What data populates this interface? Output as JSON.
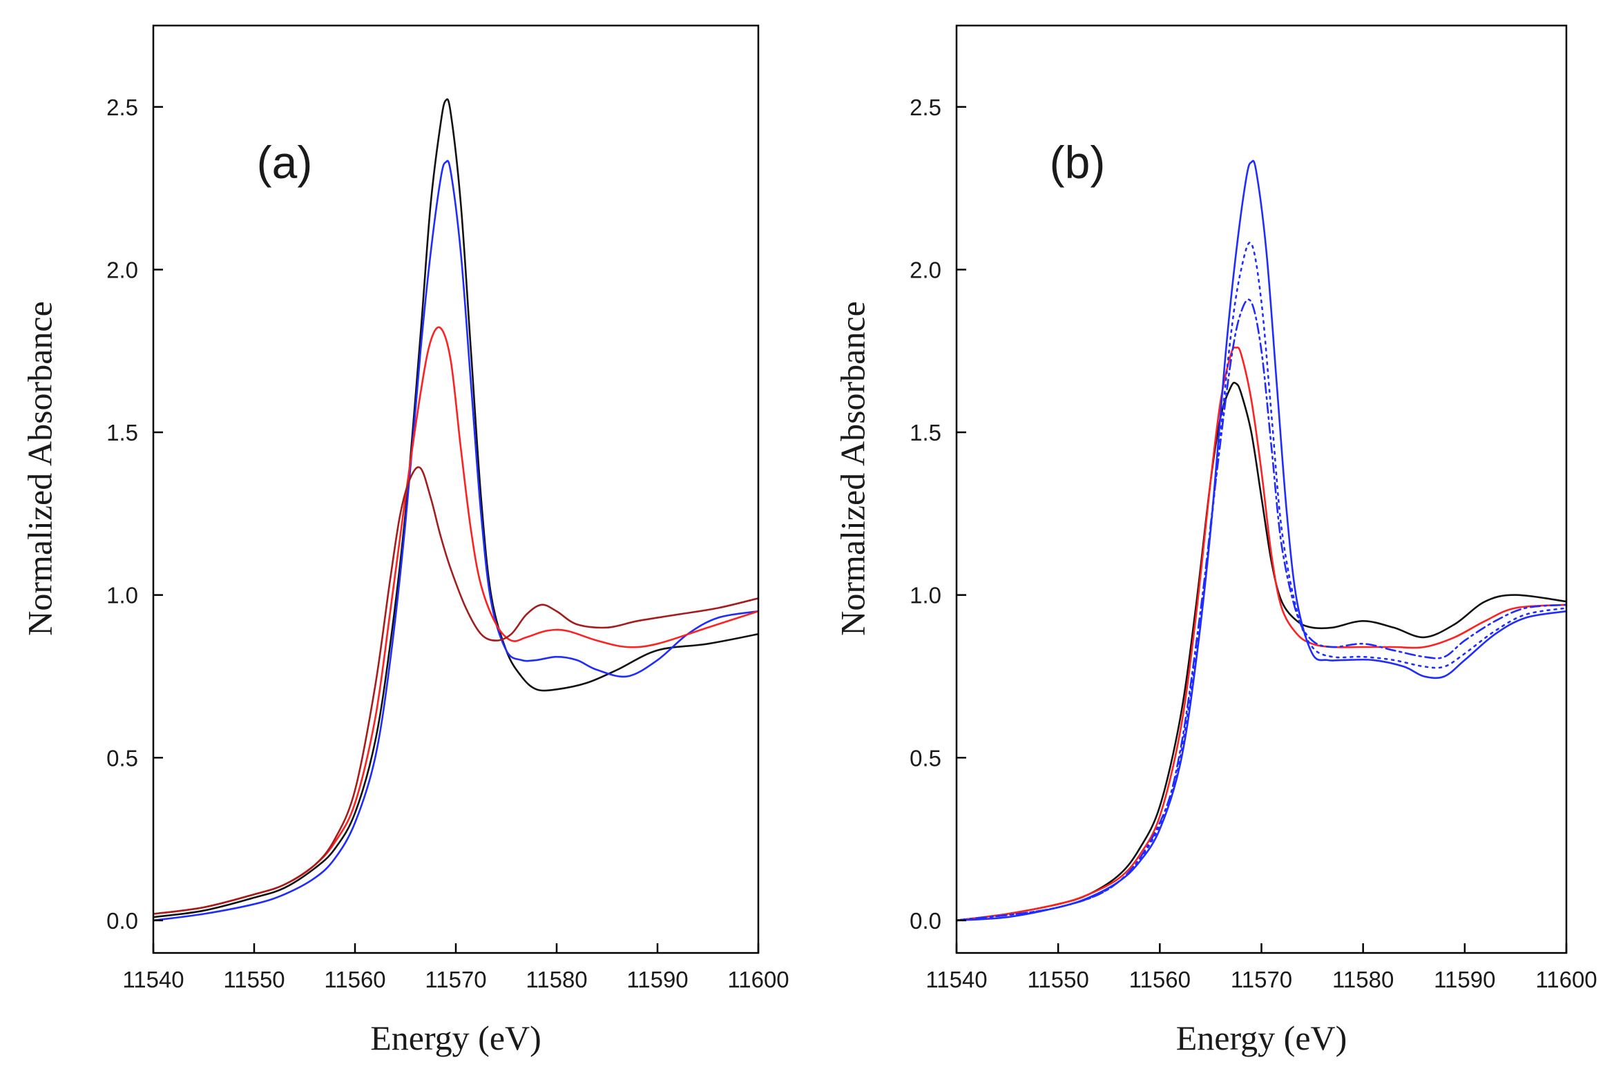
{
  "colors": {
    "black": "#111111",
    "blue": "#1f2cff",
    "red": "#ff2020",
    "darkred": "#a51c1c"
  },
  "chart_data": [
    {
      "type": "line",
      "panel_label": "(a)",
      "xlabel": "Energy (eV)",
      "ylabel": "Normalized Absorbance",
      "xlim": [
        11540,
        11600
      ],
      "ylim": [
        -0.1,
        2.75
      ],
      "xticks": [
        11540,
        11550,
        11560,
        11570,
        11580,
        11590,
        11600
      ],
      "yticks": [
        0.0,
        0.5,
        1.0,
        1.5,
        2.0,
        2.5
      ],
      "xtick_labels": [
        "11540",
        "11550",
        "11560",
        "11570",
        "11580",
        "11590",
        "11600"
      ],
      "ytick_labels": [
        "0.0",
        "0.5",
        "1.0",
        "1.5",
        "2.0",
        "2.5"
      ],
      "series": [
        {
          "color": "black",
          "style": "solid",
          "x": [
            11540,
            11545,
            11550,
            11553,
            11556,
            11558,
            11560,
            11562,
            11563.5,
            11565,
            11566.5,
            11567.5,
            11568.5,
            11569,
            11569.5,
            11570.5,
            11571.5,
            11572.5,
            11573.5,
            11575,
            11576.5,
            11578,
            11580,
            11583,
            11586,
            11590,
            11595,
            11600
          ],
          "y": [
            0.01,
            0.03,
            0.07,
            0.1,
            0.16,
            0.22,
            0.33,
            0.55,
            0.85,
            1.25,
            1.8,
            2.2,
            2.45,
            2.52,
            2.48,
            2.2,
            1.75,
            1.3,
            1.0,
            0.83,
            0.75,
            0.71,
            0.71,
            0.73,
            0.77,
            0.83,
            0.85,
            0.88
          ]
        },
        {
          "color": "blue",
          "style": "solid",
          "x": [
            11540,
            11545,
            11550,
            11553,
            11556,
            11558,
            11560,
            11562,
            11563.5,
            11565,
            11566.5,
            11567.5,
            11568.5,
            11569,
            11569.5,
            11570.5,
            11571.5,
            11572.5,
            11573.5,
            11575,
            11576.5,
            11578,
            11580,
            11582,
            11584,
            11587,
            11590,
            11593,
            11596,
            11600
          ],
          "y": [
            0.0,
            0.02,
            0.05,
            0.08,
            0.13,
            0.19,
            0.3,
            0.5,
            0.8,
            1.22,
            1.75,
            2.05,
            2.28,
            2.33,
            2.3,
            2.05,
            1.65,
            1.25,
            0.98,
            0.83,
            0.8,
            0.8,
            0.81,
            0.8,
            0.77,
            0.75,
            0.8,
            0.88,
            0.93,
            0.95
          ]
        },
        {
          "color": "red",
          "style": "solid",
          "x": [
            11540,
            11545,
            11550,
            11553,
            11556,
            11558,
            11560,
            11562,
            11563.5,
            11565,
            11566.5,
            11567.5,
            11568.5,
            11569.5,
            11570.5,
            11571.5,
            11572.5,
            11574,
            11575.5,
            11577,
            11579,
            11581,
            11584,
            11587,
            11590,
            11595,
            11600
          ],
          "y": [
            0.02,
            0.04,
            0.08,
            0.11,
            0.17,
            0.24,
            0.36,
            0.62,
            0.95,
            1.3,
            1.62,
            1.78,
            1.82,
            1.72,
            1.45,
            1.2,
            1.03,
            0.91,
            0.86,
            0.87,
            0.89,
            0.89,
            0.86,
            0.84,
            0.85,
            0.9,
            0.95
          ]
        },
        {
          "color": "darkred",
          "style": "solid",
          "x": [
            11540,
            11545,
            11550,
            11553,
            11556,
            11558,
            11560,
            11562,
            11563.5,
            11564.5,
            11565.5,
            11566.5,
            11567.5,
            11568.5,
            11569.5,
            11571,
            11572.5,
            11574,
            11575.5,
            11577,
            11578.5,
            11580,
            11582,
            11585,
            11588,
            11592,
            11596,
            11600
          ],
          "y": [
            0.02,
            0.04,
            0.08,
            0.11,
            0.17,
            0.25,
            0.4,
            0.72,
            1.05,
            1.25,
            1.36,
            1.39,
            1.3,
            1.18,
            1.08,
            0.96,
            0.88,
            0.86,
            0.88,
            0.94,
            0.97,
            0.95,
            0.91,
            0.9,
            0.92,
            0.94,
            0.96,
            0.99
          ]
        }
      ]
    },
    {
      "type": "line",
      "panel_label": "(b)",
      "xlabel": "Energy (eV)",
      "ylabel": "Normalized Absorbance",
      "xlim": [
        11540,
        11600
      ],
      "ylim": [
        -0.1,
        2.75
      ],
      "xticks": [
        11540,
        11550,
        11560,
        11570,
        11580,
        11590,
        11600
      ],
      "yticks": [
        0.0,
        0.5,
        1.0,
        1.5,
        2.0,
        2.5
      ],
      "xtick_labels": [
        "11540",
        "11550",
        "11560",
        "11570",
        "11580",
        "11590",
        "11600"
      ],
      "ytick_labels": [
        "0.0",
        "0.5",
        "1.0",
        "1.5",
        "2.0",
        "2.5"
      ],
      "series": [
        {
          "color": "black",
          "style": "solid",
          "x": [
            11540,
            11545,
            11550,
            11553,
            11556,
            11558,
            11560,
            11562,
            11563.5,
            11565,
            11566,
            11567,
            11567.5,
            11568,
            11569,
            11570,
            11571,
            11572,
            11573.5,
            11575,
            11577,
            11580,
            11583,
            11586,
            11589,
            11592,
            11595,
            11600
          ],
          "y": [
            0.0,
            0.02,
            0.05,
            0.08,
            0.14,
            0.22,
            0.35,
            0.62,
            0.95,
            1.35,
            1.55,
            1.64,
            1.65,
            1.62,
            1.5,
            1.3,
            1.1,
            0.98,
            0.92,
            0.9,
            0.9,
            0.92,
            0.9,
            0.87,
            0.91,
            0.98,
            1.0,
            0.98
          ]
        },
        {
          "color": "red",
          "style": "solid",
          "x": [
            11540,
            11545,
            11550,
            11553,
            11556,
            11558,
            11560,
            11562,
            11563.5,
            11565,
            11566,
            11567,
            11567.5,
            11568,
            11569,
            11570,
            11571,
            11572,
            11573.5,
            11575,
            11577,
            11580,
            11583,
            11586,
            11589,
            11592,
            11595,
            11600
          ],
          "y": [
            0.0,
            0.02,
            0.05,
            0.08,
            0.13,
            0.2,
            0.32,
            0.58,
            0.92,
            1.35,
            1.6,
            1.74,
            1.76,
            1.74,
            1.6,
            1.38,
            1.12,
            0.96,
            0.88,
            0.85,
            0.84,
            0.84,
            0.84,
            0.84,
            0.87,
            0.92,
            0.96,
            0.97
          ]
        },
        {
          "color": "blue",
          "style": "solid",
          "x": [
            11540,
            11545,
            11550,
            11553,
            11556,
            11558,
            11560,
            11562,
            11563.5,
            11565,
            11566.5,
            11567.5,
            11568.5,
            11569,
            11569.5,
            11570.5,
            11571.5,
            11572.5,
            11573.5,
            11575,
            11576.5,
            11578,
            11581,
            11584,
            11586,
            11588,
            11590,
            11593,
            11596,
            11600
          ],
          "y": [
            0.0,
            0.01,
            0.04,
            0.07,
            0.12,
            0.18,
            0.28,
            0.48,
            0.78,
            1.2,
            1.75,
            2.05,
            2.28,
            2.33,
            2.3,
            2.05,
            1.65,
            1.25,
            0.98,
            0.82,
            0.8,
            0.8,
            0.8,
            0.78,
            0.75,
            0.75,
            0.8,
            0.88,
            0.93,
            0.95
          ]
        },
        {
          "color": "blue",
          "style": "dotted",
          "x": [
            11540,
            11550,
            11556,
            11560,
            11562,
            11564,
            11565.5,
            11567,
            11568,
            11569,
            11570,
            11571,
            11572,
            11573.5,
            11575,
            11577,
            11580,
            11583,
            11586,
            11588,
            11590,
            11593,
            11596,
            11600
          ],
          "y": [
            0.0,
            0.04,
            0.12,
            0.29,
            0.5,
            0.92,
            1.35,
            1.8,
            2.0,
            2.08,
            1.9,
            1.55,
            1.2,
            0.95,
            0.84,
            0.81,
            0.81,
            0.8,
            0.78,
            0.78,
            0.82,
            0.89,
            0.94,
            0.96
          ]
        },
        {
          "color": "blue",
          "style": "dashdot",
          "x": [
            11540,
            11550,
            11556,
            11560,
            11562,
            11564,
            11565.5,
            11567,
            11568,
            11569,
            11570,
            11571,
            11572,
            11573.5,
            11575,
            11577,
            11580,
            11583,
            11586,
            11588,
            11590,
            11593,
            11596,
            11600
          ],
          "y": [
            0.0,
            0.04,
            0.12,
            0.3,
            0.52,
            0.95,
            1.35,
            1.72,
            1.87,
            1.9,
            1.75,
            1.45,
            1.15,
            0.94,
            0.86,
            0.84,
            0.85,
            0.83,
            0.81,
            0.81,
            0.86,
            0.92,
            0.96,
            0.97
          ]
        }
      ]
    }
  ]
}
